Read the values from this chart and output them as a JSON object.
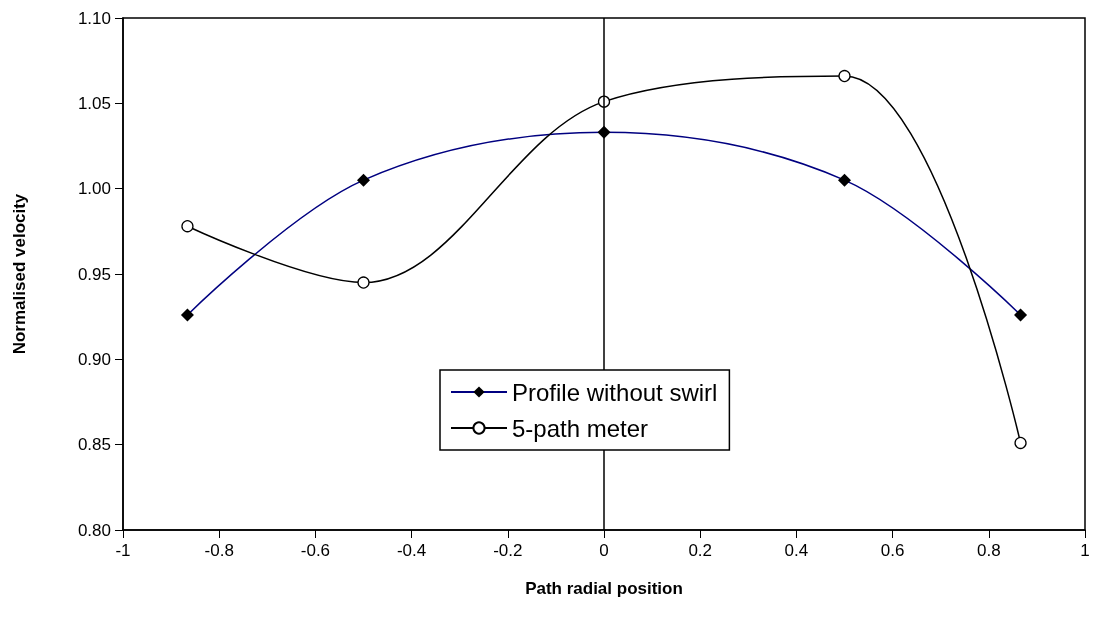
{
  "chart_data": {
    "type": "line",
    "xlabel": "Path radial position",
    "ylabel": "Normalised velocity",
    "xlim": [
      -1,
      1
    ],
    "xticks": [
      -1,
      -0.8,
      -0.6,
      -0.4,
      -0.2,
      0,
      0.2,
      0.4,
      0.6,
      0.8,
      1
    ],
    "ylim": [
      0.8,
      1.1
    ],
    "yticks": [
      {
        "value": 0.8,
        "label": "0.80"
      },
      {
        "value": 0.85,
        "label": "0.85"
      },
      {
        "value": 0.9,
        "label": "0.90"
      },
      {
        "value": 0.95,
        "label": "0.95"
      },
      {
        "value": 1.0,
        "label": "1.00"
      },
      {
        "value": 1.05,
        "label": "1.05"
      },
      {
        "value": 1.1,
        "label": "1.10"
      }
    ],
    "x": [
      -0.866,
      -0.5,
      0,
      0.5,
      0.866
    ],
    "series": [
      {
        "name": "Profile without swirl",
        "color": "#000080",
        "marker": "diamond",
        "values": [
          0.926,
          1.005,
          1.033,
          1.005,
          0.926
        ]
      },
      {
        "name": "5-path meter",
        "color": "#000000",
        "marker": "circle",
        "values": [
          0.978,
          0.945,
          1.051,
          1.066,
          0.851
        ]
      }
    ],
    "ref_lines": [
      {
        "axis": "x",
        "value": 0,
        "color": "#000000"
      }
    ],
    "grid": false,
    "legend": "bottom"
  }
}
